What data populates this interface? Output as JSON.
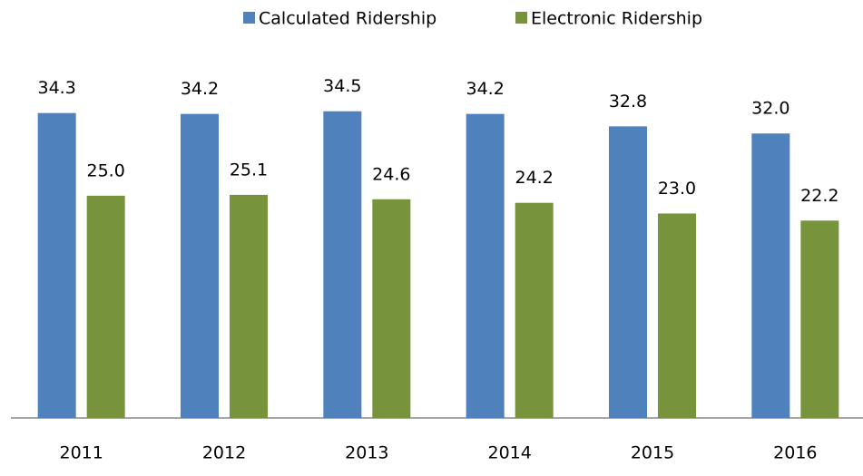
{
  "chart_data": {
    "type": "bar",
    "categories": [
      "2011",
      "2012",
      "2013",
      "2014",
      "2015",
      "2016"
    ],
    "series": [
      {
        "name": "Calculated Ridership",
        "color": "#4f81bd",
        "values": [
          34.3,
          34.2,
          34.5,
          34.2,
          32.8,
          32.0
        ],
        "value_labels": [
          "34.3",
          "34.2",
          "34.5",
          "34.2",
          "32.8",
          "32.0"
        ]
      },
      {
        "name": "Electronic Ridership",
        "color": "#77933c",
        "values": [
          25.0,
          25.1,
          24.6,
          24.2,
          23.0,
          22.2
        ],
        "value_labels": [
          "25.0",
          "25.1",
          "24.6",
          "24.2",
          "23.0",
          "22.2"
        ]
      }
    ],
    "ylim": [
      0,
      36
    ]
  }
}
